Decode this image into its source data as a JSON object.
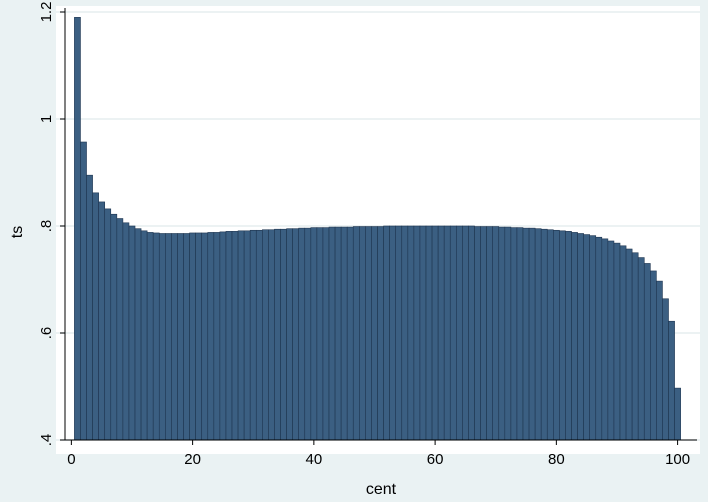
{
  "chart_data": {
    "type": "bar",
    "title": "",
    "xlabel": "cent",
    "ylabel": "ts",
    "xlim": [
      0,
      100
    ],
    "ylim": [
      0.4,
      1.2
    ],
    "xticks": [
      0,
      20,
      40,
      60,
      80,
      100
    ],
    "xtick_labels": [
      "0",
      "20",
      "40",
      "60",
      "80",
      "100"
    ],
    "yticks": [
      0.4,
      0.6,
      0.8,
      1.0,
      1.2
    ],
    "ytick_labels": [
      ".4",
      ".6",
      ".8",
      "1",
      "1.2"
    ],
    "grid": true,
    "legend": "none",
    "colors": {
      "background": "#eaf2f3",
      "plot_background": "#ffffff",
      "bar_fill": "#3b5f82",
      "bar_edge": "#1e3550",
      "grid": "#e6eeef"
    },
    "x": [
      1,
      2,
      3,
      4,
      5,
      6,
      7,
      8,
      9,
      10,
      11,
      12,
      13,
      14,
      15,
      16,
      17,
      18,
      19,
      20,
      21,
      22,
      23,
      24,
      25,
      26,
      27,
      28,
      29,
      30,
      31,
      32,
      33,
      34,
      35,
      36,
      37,
      38,
      39,
      40,
      41,
      42,
      43,
      44,
      45,
      46,
      47,
      48,
      49,
      50,
      51,
      52,
      53,
      54,
      55,
      56,
      57,
      58,
      59,
      60,
      61,
      62,
      63,
      64,
      65,
      66,
      67,
      68,
      69,
      70,
      71,
      72,
      73,
      74,
      75,
      76,
      77,
      78,
      79,
      80,
      81,
      82,
      83,
      84,
      85,
      86,
      87,
      88,
      89,
      90,
      91,
      92,
      93,
      94,
      95,
      96,
      97,
      98,
      99,
      100
    ],
    "values": [
      1.19,
      0.957,
      0.895,
      0.862,
      0.845,
      0.832,
      0.822,
      0.814,
      0.806,
      0.8,
      0.795,
      0.791,
      0.788,
      0.787,
      0.786,
      0.786,
      0.786,
      0.786,
      0.786,
      0.787,
      0.787,
      0.787,
      0.788,
      0.788,
      0.789,
      0.79,
      0.79,
      0.791,
      0.791,
      0.792,
      0.792,
      0.793,
      0.793,
      0.794,
      0.794,
      0.795,
      0.795,
      0.796,
      0.796,
      0.797,
      0.797,
      0.797,
      0.798,
      0.798,
      0.798,
      0.798,
      0.799,
      0.799,
      0.799,
      0.799,
      0.799,
      0.8,
      0.8,
      0.8,
      0.8,
      0.8,
      0.8,
      0.8,
      0.8,
      0.8,
      0.8,
      0.8,
      0.8,
      0.8,
      0.8,
      0.8,
      0.799,
      0.799,
      0.799,
      0.799,
      0.798,
      0.798,
      0.797,
      0.797,
      0.796,
      0.796,
      0.795,
      0.794,
      0.793,
      0.792,
      0.791,
      0.79,
      0.788,
      0.786,
      0.784,
      0.782,
      0.779,
      0.776,
      0.772,
      0.768,
      0.763,
      0.757,
      0.75,
      0.741,
      0.73,
      0.716,
      0.697,
      0.664,
      0.622,
      0.497
    ]
  }
}
